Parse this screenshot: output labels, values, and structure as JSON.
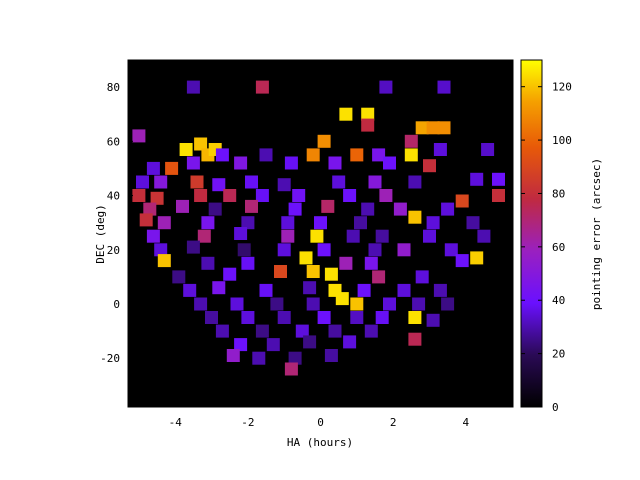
{
  "chart_data": {
    "type": "heatmap",
    "title": "",
    "xlabel": "HA (hours)",
    "ylabel": "DEC (deg)",
    "colorbar_label": "pointing error (arcsec)",
    "xlim": [
      -5.3,
      5.3
    ],
    "ylim": [
      -38,
      90
    ],
    "x_ticks": [
      -4,
      -2,
      0,
      2,
      4
    ],
    "y_ticks": [
      -20,
      0,
      20,
      40,
      60,
      80
    ],
    "x_tick_labels": [
      "-4",
      "-2",
      "0",
      "2",
      "4"
    ],
    "y_tick_labels": [
      "-20",
      "0",
      "20",
      "40",
      "60",
      "80"
    ],
    "colorbar_range": [
      0,
      130
    ],
    "colorbar_ticks": [
      0,
      20,
      40,
      60,
      80,
      100,
      120
    ],
    "colorbar_tick_labels": [
      "0",
      "20",
      "40",
      "60",
      "80",
      "100",
      "120"
    ],
    "background_color": "#000000",
    "colormap": "black-blue-purple-red-orange-yellow",
    "grid": false,
    "points": [
      {
        "x": -3.5,
        "y": 80,
        "v": 30
      },
      {
        "x": -1.6,
        "y": 80,
        "v": 75
      },
      {
        "x": 1.8,
        "y": 80,
        "v": 32
      },
      {
        "x": 3.4,
        "y": 80,
        "v": 33
      },
      {
        "x": 0.7,
        "y": 70,
        "v": 125
      },
      {
        "x": 1.3,
        "y": 70,
        "v": 125
      },
      {
        "x": 1.3,
        "y": 66,
        "v": 78
      },
      {
        "x": 2.8,
        "y": 65,
        "v": 115
      },
      {
        "x": 3.1,
        "y": 65,
        "v": 110
      },
      {
        "x": 3.4,
        "y": 65,
        "v": 110
      },
      {
        "x": -5.0,
        "y": 62,
        "v": 60
      },
      {
        "x": -3.7,
        "y": 57,
        "v": 125
      },
      {
        "x": -3.3,
        "y": 59,
        "v": 120
      },
      {
        "x": -3.1,
        "y": 55,
        "v": 118
      },
      {
        "x": -2.9,
        "y": 57,
        "v": 122
      },
      {
        "x": -2.7,
        "y": 55,
        "v": 40
      },
      {
        "x": -1.5,
        "y": 55,
        "v": 30
      },
      {
        "x": 0.1,
        "y": 60,
        "v": 110
      },
      {
        "x": -0.2,
        "y": 55,
        "v": 108
      },
      {
        "x": 1.0,
        "y": 55,
        "v": 100
      },
      {
        "x": 1.6,
        "y": 55,
        "v": 45
      },
      {
        "x": 2.5,
        "y": 55,
        "v": 125
      },
      {
        "x": 2.5,
        "y": 60,
        "v": 72
      },
      {
        "x": 3.3,
        "y": 57,
        "v": 35
      },
      {
        "x": 4.6,
        "y": 57,
        "v": 33
      },
      {
        "x": -4.6,
        "y": 50,
        "v": 35
      },
      {
        "x": -4.1,
        "y": 50,
        "v": 95
      },
      {
        "x": -3.5,
        "y": 52,
        "v": 45
      },
      {
        "x": -2.2,
        "y": 52,
        "v": 48
      },
      {
        "x": -0.8,
        "y": 52,
        "v": 38
      },
      {
        "x": 0.4,
        "y": 52,
        "v": 45
      },
      {
        "x": 1.9,
        "y": 52,
        "v": 40
      },
      {
        "x": 3.0,
        "y": 51,
        "v": 80
      },
      {
        "x": -4.9,
        "y": 45,
        "v": 35
      },
      {
        "x": -4.4,
        "y": 45,
        "v": 50
      },
      {
        "x": -3.4,
        "y": 45,
        "v": 85
      },
      {
        "x": -2.8,
        "y": 44,
        "v": 42
      },
      {
        "x": -1.9,
        "y": 45,
        "v": 38
      },
      {
        "x": -1.0,
        "y": 44,
        "v": 30
      },
      {
        "x": 0.5,
        "y": 45,
        "v": 35
      },
      {
        "x": 1.5,
        "y": 45,
        "v": 50
      },
      {
        "x": 2.6,
        "y": 45,
        "v": 30
      },
      {
        "x": 4.3,
        "y": 46,
        "v": 35
      },
      {
        "x": 4.9,
        "y": 46,
        "v": 40
      },
      {
        "x": -5.0,
        "y": 40,
        "v": 80
      },
      {
        "x": -4.5,
        "y": 39,
        "v": 82
      },
      {
        "x": -3.3,
        "y": 40,
        "v": 78
      },
      {
        "x": -2.5,
        "y": 40,
        "v": 75
      },
      {
        "x": -1.6,
        "y": 40,
        "v": 38
      },
      {
        "x": -0.6,
        "y": 40,
        "v": 42
      },
      {
        "x": 0.8,
        "y": 40,
        "v": 40
      },
      {
        "x": 1.8,
        "y": 40,
        "v": 60
      },
      {
        "x": 3.9,
        "y": 38,
        "v": 90
      },
      {
        "x": 4.9,
        "y": 40,
        "v": 80
      },
      {
        "x": -4.7,
        "y": 35,
        "v": 70
      },
      {
        "x": -3.8,
        "y": 36,
        "v": 60
      },
      {
        "x": -2.9,
        "y": 35,
        "v": 25
      },
      {
        "x": -1.9,
        "y": 36,
        "v": 70
      },
      {
        "x": -0.7,
        "y": 35,
        "v": 40
      },
      {
        "x": 0.2,
        "y": 36,
        "v": 72
      },
      {
        "x": 1.3,
        "y": 35,
        "v": 30
      },
      {
        "x": 2.2,
        "y": 35,
        "v": 55
      },
      {
        "x": 3.5,
        "y": 35,
        "v": 35
      },
      {
        "x": -4.8,
        "y": 31,
        "v": 80
      },
      {
        "x": -4.3,
        "y": 30,
        "v": 60
      },
      {
        "x": -3.1,
        "y": 30,
        "v": 45
      },
      {
        "x": -2.0,
        "y": 30,
        "v": 30
      },
      {
        "x": -0.9,
        "y": 30,
        "v": 35
      },
      {
        "x": 0.0,
        "y": 30,
        "v": 40
      },
      {
        "x": 1.1,
        "y": 30,
        "v": 28
      },
      {
        "x": 2.6,
        "y": 32,
        "v": 120
      },
      {
        "x": 3.1,
        "y": 30,
        "v": 35
      },
      {
        "x": 4.2,
        "y": 30,
        "v": 28
      },
      {
        "x": -4.6,
        "y": 25,
        "v": 45
      },
      {
        "x": -3.2,
        "y": 25,
        "v": 70
      },
      {
        "x": -2.2,
        "y": 26,
        "v": 35
      },
      {
        "x": -0.9,
        "y": 25,
        "v": 60
      },
      {
        "x": -0.1,
        "y": 25,
        "v": 125
      },
      {
        "x": 0.9,
        "y": 25,
        "v": 30
      },
      {
        "x": 1.7,
        "y": 25,
        "v": 28
      },
      {
        "x": 3.0,
        "y": 25,
        "v": 35
      },
      {
        "x": 4.5,
        "y": 25,
        "v": 30
      },
      {
        "x": -4.4,
        "y": 20,
        "v": 35
      },
      {
        "x": -3.5,
        "y": 21,
        "v": 25
      },
      {
        "x": -2.1,
        "y": 20,
        "v": 22
      },
      {
        "x": -1.0,
        "y": 20,
        "v": 35
      },
      {
        "x": 0.1,
        "y": 20,
        "v": 40
      },
      {
        "x": 1.5,
        "y": 20,
        "v": 30
      },
      {
        "x": 2.3,
        "y": 20,
        "v": 55
      },
      {
        "x": 3.6,
        "y": 20,
        "v": 35
      },
      {
        "x": -4.3,
        "y": 16,
        "v": 120
      },
      {
        "x": -3.1,
        "y": 15,
        "v": 30
      },
      {
        "x": -2.0,
        "y": 15,
        "v": 38
      },
      {
        "x": -0.4,
        "y": 17,
        "v": 125
      },
      {
        "x": 0.7,
        "y": 15,
        "v": 60
      },
      {
        "x": 1.4,
        "y": 15,
        "v": 45
      },
      {
        "x": 3.9,
        "y": 16,
        "v": 40
      },
      {
        "x": 4.3,
        "y": 17,
        "v": 122
      },
      {
        "x": -3.9,
        "y": 10,
        "v": 25
      },
      {
        "x": -2.5,
        "y": 11,
        "v": 40
      },
      {
        "x": -1.1,
        "y": 12,
        "v": 90
      },
      {
        "x": -0.2,
        "y": 12,
        "v": 120
      },
      {
        "x": 0.3,
        "y": 11,
        "v": 125
      },
      {
        "x": 1.6,
        "y": 10,
        "v": 70
      },
      {
        "x": 2.8,
        "y": 10,
        "v": 35
      },
      {
        "x": -3.6,
        "y": 5,
        "v": 35
      },
      {
        "x": -2.8,
        "y": 6,
        "v": 45
      },
      {
        "x": -1.5,
        "y": 5,
        "v": 38
      },
      {
        "x": -0.3,
        "y": 6,
        "v": 30
      },
      {
        "x": 0.4,
        "y": 5,
        "v": 125
      },
      {
        "x": 1.2,
        "y": 5,
        "v": 40
      },
      {
        "x": 2.3,
        "y": 5,
        "v": 35
      },
      {
        "x": 3.3,
        "y": 5,
        "v": 30
      },
      {
        "x": -3.3,
        "y": 0,
        "v": 30
      },
      {
        "x": -2.3,
        "y": 0,
        "v": 35
      },
      {
        "x": -1.2,
        "y": 0,
        "v": 25
      },
      {
        "x": -0.2,
        "y": 0,
        "v": 30
      },
      {
        "x": 0.6,
        "y": 2,
        "v": 125
      },
      {
        "x": 1.0,
        "y": 0,
        "v": 120
      },
      {
        "x": 1.9,
        "y": 0,
        "v": 35
      },
      {
        "x": 2.7,
        "y": 0,
        "v": 30
      },
      {
        "x": 3.5,
        "y": 0,
        "v": 25
      },
      {
        "x": -3.0,
        "y": -5,
        "v": 28
      },
      {
        "x": -2.0,
        "y": -5,
        "v": 35
      },
      {
        "x": -1.0,
        "y": -5,
        "v": 30
      },
      {
        "x": 0.1,
        "y": -5,
        "v": 40
      },
      {
        "x": 1.0,
        "y": -5,
        "v": 32
      },
      {
        "x": 1.7,
        "y": -5,
        "v": 38
      },
      {
        "x": 2.6,
        "y": -5,
        "v": 125
      },
      {
        "x": 3.1,
        "y": -6,
        "v": 30
      },
      {
        "x": -2.7,
        "y": -10,
        "v": 30
      },
      {
        "x": -1.6,
        "y": -10,
        "v": 25
      },
      {
        "x": -0.5,
        "y": -10,
        "v": 35
      },
      {
        "x": 0.4,
        "y": -10,
        "v": 28
      },
      {
        "x": 1.4,
        "y": -10,
        "v": 30
      },
      {
        "x": 2.6,
        "y": -13,
        "v": 75
      },
      {
        "x": -2.2,
        "y": -15,
        "v": 40
      },
      {
        "x": -1.3,
        "y": -15,
        "v": 30
      },
      {
        "x": -0.3,
        "y": -14,
        "v": 25
      },
      {
        "x": 0.8,
        "y": -14,
        "v": 35
      },
      {
        "x": -2.4,
        "y": -19,
        "v": 55
      },
      {
        "x": -1.7,
        "y": -20,
        "v": 30
      },
      {
        "x": -0.7,
        "y": -20,
        "v": 25
      },
      {
        "x": 0.3,
        "y": -19,
        "v": 28
      },
      {
        "x": -0.8,
        "y": -24,
        "v": 70
      }
    ]
  }
}
